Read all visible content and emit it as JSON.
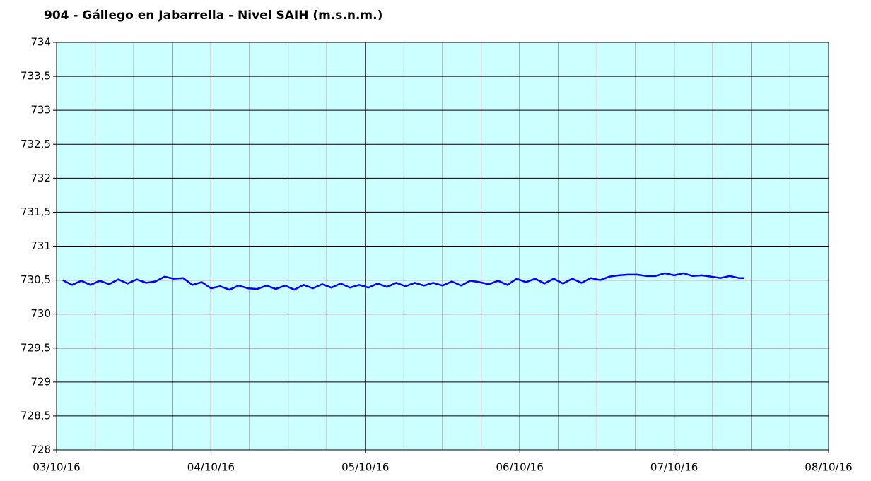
{
  "chart_data": {
    "type": "line",
    "title": "904 - Gállego en Jabarrella - Nivel SAIH (m.s.n.m.)",
    "xlim": [
      0,
      5
    ],
    "xticks": [
      {
        "value": 0,
        "label": "03/10/16"
      },
      {
        "value": 1,
        "label": "04/10/16"
      },
      {
        "value": 2,
        "label": "05/10/16"
      },
      {
        "value": 3,
        "label": "06/10/16"
      },
      {
        "value": 4,
        "label": "07/10/16"
      },
      {
        "value": 5,
        "label": "08/10/16"
      }
    ],
    "xminorticks": [
      0.25,
      0.5,
      0.75,
      1.25,
      1.5,
      1.75,
      2.25,
      2.5,
      2.75,
      3.25,
      3.5,
      3.75,
      4.25,
      4.5,
      4.75
    ],
    "ylim": [
      728,
      734
    ],
    "yticks": [
      728,
      {
        "value": 728.5,
        "label": "728,5"
      },
      729,
      {
        "value": 729.5,
        "label": "729,5"
      },
      730,
      {
        "value": 730.5,
        "label": "730,5"
      },
      731,
      {
        "value": 731.5,
        "label": "731,5"
      },
      732,
      {
        "value": 732.5,
        "label": "732,5"
      },
      733,
      {
        "value": 733.5,
        "label": "733,5"
      },
      734
    ],
    "grid": true,
    "background": "#ccffff",
    "series": [
      {
        "color": "#0000ff",
        "x": [
          0.04,
          0.1,
          0.16,
          0.22,
          0.28,
          0.34,
          0.4,
          0.46,
          0.52,
          0.58,
          0.64,
          0.7,
          0.76,
          0.82,
          0.88,
          0.94,
          1.0,
          1.06,
          1.12,
          1.18,
          1.24,
          1.3,
          1.36,
          1.42,
          1.48,
          1.54,
          1.6,
          1.66,
          1.72,
          1.78,
          1.84,
          1.9,
          1.96,
          2.02,
          2.08,
          2.14,
          2.2,
          2.26,
          2.32,
          2.38,
          2.44,
          2.5,
          2.56,
          2.62,
          2.68,
          2.74,
          2.8,
          2.86,
          2.92,
          2.98,
          3.04,
          3.1,
          3.16,
          3.22,
          3.28,
          3.34,
          3.4,
          3.46,
          3.52,
          3.58,
          3.64,
          3.7,
          3.76,
          3.82,
          3.88,
          3.94,
          4.0,
          4.06,
          4.12,
          4.18,
          4.24,
          4.3,
          4.36,
          4.42,
          4.455
        ],
        "values": [
          730.5,
          730.43,
          730.49,
          730.43,
          730.49,
          730.44,
          730.51,
          730.45,
          730.51,
          730.46,
          730.48,
          730.55,
          730.52,
          730.53,
          730.43,
          730.47,
          730.38,
          730.41,
          730.36,
          730.42,
          730.38,
          730.37,
          730.42,
          730.37,
          730.42,
          730.36,
          730.43,
          730.38,
          730.44,
          730.39,
          730.45,
          730.39,
          730.43,
          730.39,
          730.45,
          730.4,
          730.46,
          730.41,
          730.46,
          730.42,
          730.46,
          730.42,
          730.48,
          730.42,
          730.49,
          730.47,
          730.44,
          730.49,
          730.43,
          730.52,
          730.47,
          730.52,
          730.45,
          730.52,
          730.45,
          730.52,
          730.46,
          730.53,
          730.5,
          730.55,
          730.57,
          730.58,
          730.58,
          730.56,
          730.56,
          730.6,
          730.57,
          730.6,
          730.56,
          730.57,
          730.55,
          730.53,
          730.56,
          730.53,
          730.53
        ]
      }
    ]
  }
}
